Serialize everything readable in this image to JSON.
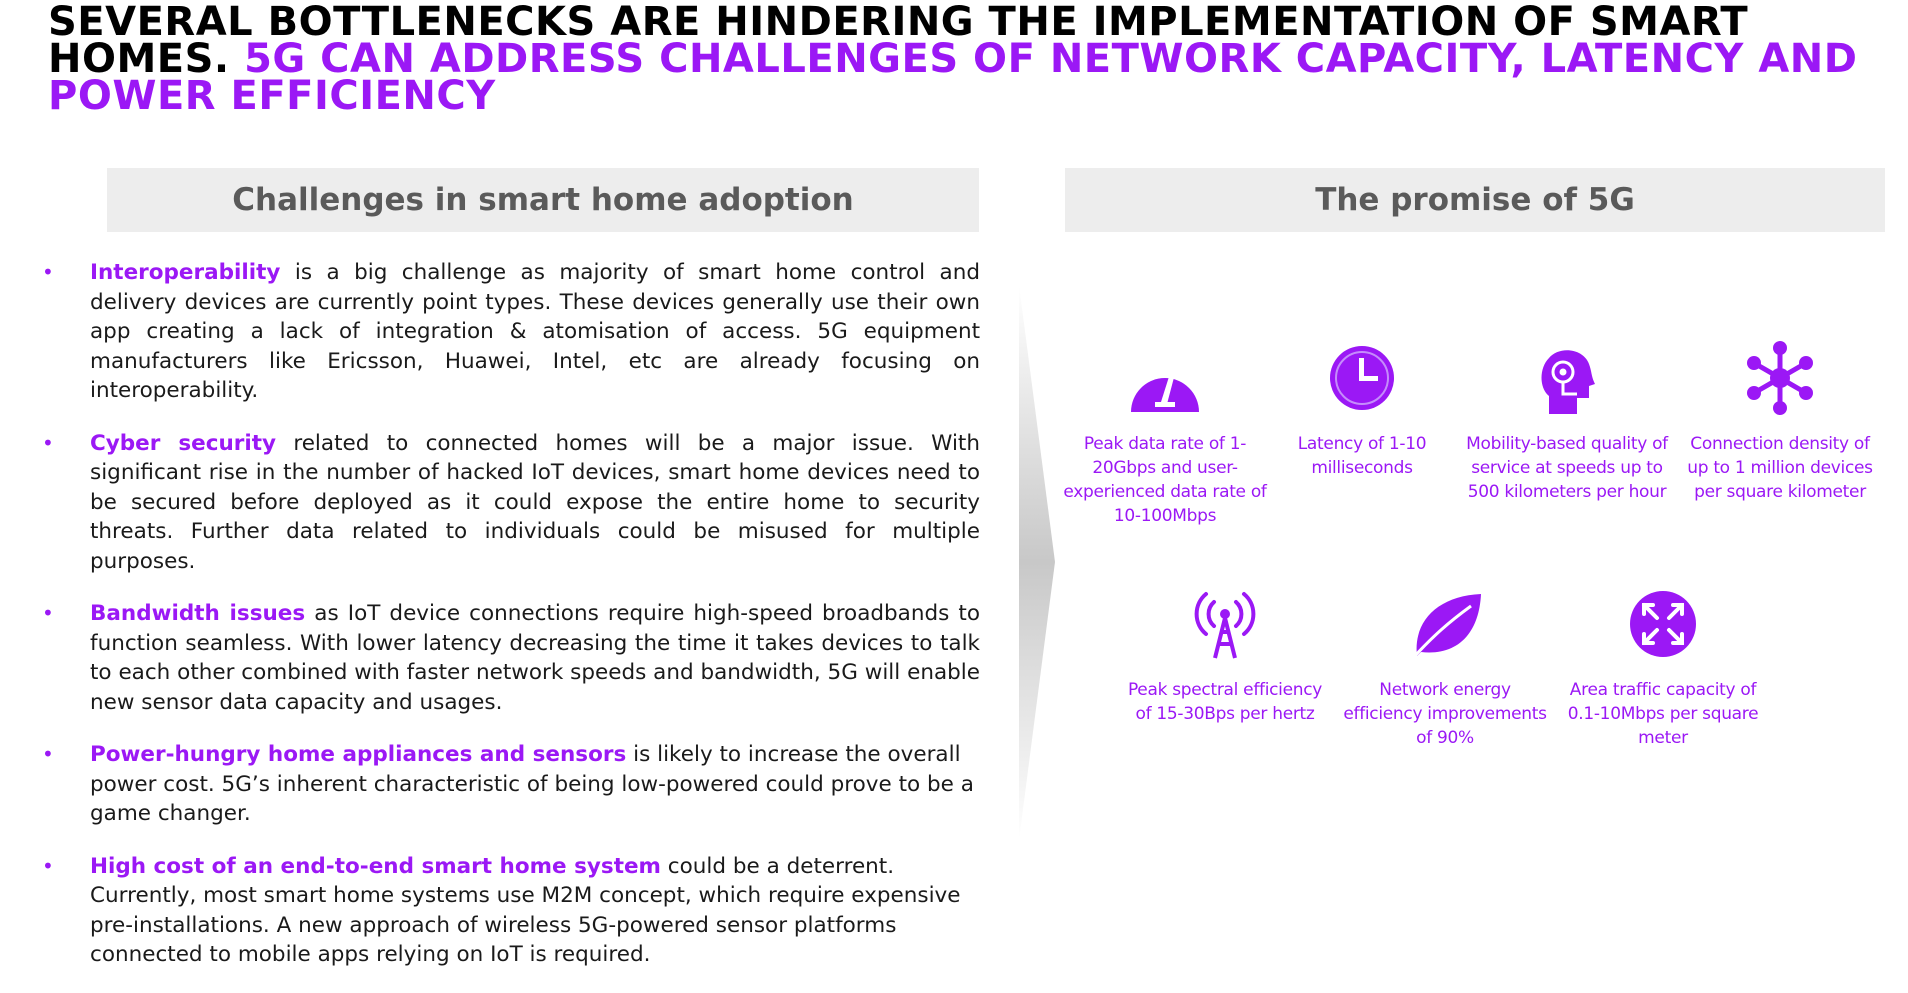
{
  "title": {
    "part1": "SEVERAL BOTTLENECKS ARE HINDERING THE IMPLEMENTATION OF SMART HOMES.",
    "part2": "5G CAN ADDRESS CHALLENGES OF NETWORK CAPACITY, LATENCY AND POWER EFFICIENCY"
  },
  "left_panel": {
    "header": "Challenges in smart home adoption",
    "bullet_glyph": "•",
    "bullets": [
      {
        "term": "Interoperability",
        "text": " is a big challenge as majority of smart home control and delivery devices are currently point types. These devices generally use their own app creating  a lack of integration & atomisation of access. 5G equipment manufacturers like Ericsson, Huawei, Intel, etc are already focusing on interoperability."
      },
      {
        "term": "Cyber security",
        "text": " related to connected homes will be a major issue. With significant rise in the number of hacked IoT devices, smart home devices need to be secured before deployed as it could expose the entire home to security threats. Further data related to individuals could be misused for multiple purposes."
      },
      {
        "term": "Bandwidth issues",
        "text": " as IoT device connections require high-speed broadbands to function seamless. With lower latency decreasing the time it takes devices to talk to each other combined with faster network speeds and bandwidth, 5G will enable new sensor data capacity and usages."
      },
      {
        "term": "Power-hungry home appliances and sensors",
        "text": " is likely to increase the overall power cost. 5G’s inherent characteristic of being low-powered could prove to be a game changer."
      },
      {
        "term": "High cost of an end-to-end smart home system",
        "text": " could be a deterrent. Currently, most smart home systems use M2M concept, which require expensive pre-installations. A new approach of wireless 5G-powered sensor platforms connected to mobile apps relying on IoT is required."
      }
    ]
  },
  "right_panel": {
    "header": "The promise of 5G",
    "accent_color": "#9b18f5",
    "features": [
      {
        "icon": "speedometer-icon",
        "label": "Peak data rate of 1-20Gbps and user-experienced data rate of 10-100Mbps"
      },
      {
        "icon": "clock-icon",
        "label": "Latency of 1-10 milliseconds"
      },
      {
        "icon": "head-headset-icon",
        "label": "Mobility-based quality of service at speeds up to 500 kilometers per hour"
      },
      {
        "icon": "network-nodes-icon",
        "label": "Connection density of up to 1 million devices per square kilometer"
      },
      {
        "icon": "antenna-signal-icon",
        "label": "Peak spectral efficiency of 15-30Bps per hertz"
      },
      {
        "icon": "leaf-icon",
        "label": "Network energy efficiency improvements of 90%"
      },
      {
        "icon": "expand-arrows-icon",
        "label": "Area traffic capacity of 0.1-10Mbps per square meter"
      }
    ]
  }
}
